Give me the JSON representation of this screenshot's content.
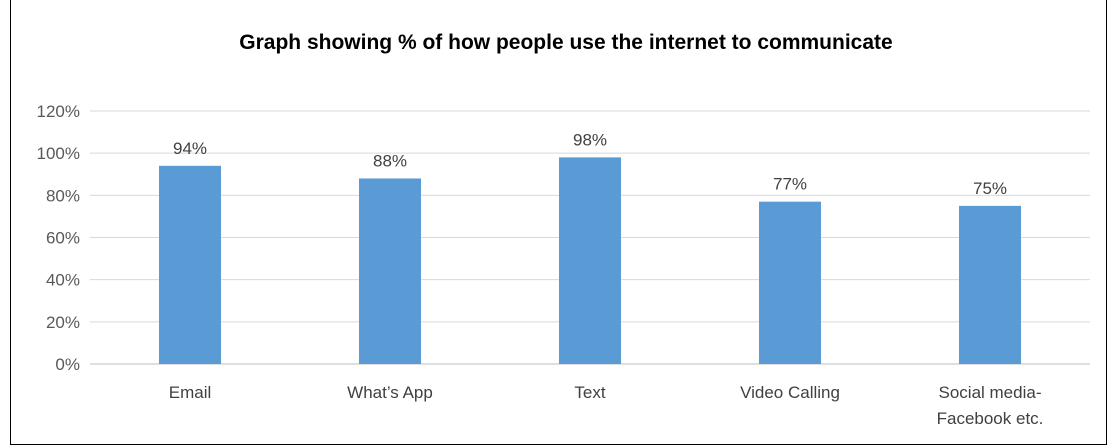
{
  "chart_data": {
    "type": "bar",
    "title": "Graph showing % of how people use the internet to communicate",
    "categories": [
      [
        "Email"
      ],
      [
        "What’s App"
      ],
      [
        "Text"
      ],
      [
        "Video Calling"
      ],
      [
        "Social media-",
        "Facebook etc."
      ]
    ],
    "values": [
      94,
      88,
      98,
      77,
      75
    ],
    "data_labels": [
      "94%",
      "88%",
      "98%",
      "77%",
      "75%"
    ],
    "yticks": [
      "0%",
      "20%",
      "40%",
      "60%",
      "80%",
      "100%",
      "120%"
    ],
    "ylim": [
      0,
      120
    ],
    "grid": true,
    "legend": "none",
    "colors": {
      "bar": "#5B9BD5",
      "grid": "#D9D9D9",
      "axis": "#BFBFBF"
    }
  }
}
